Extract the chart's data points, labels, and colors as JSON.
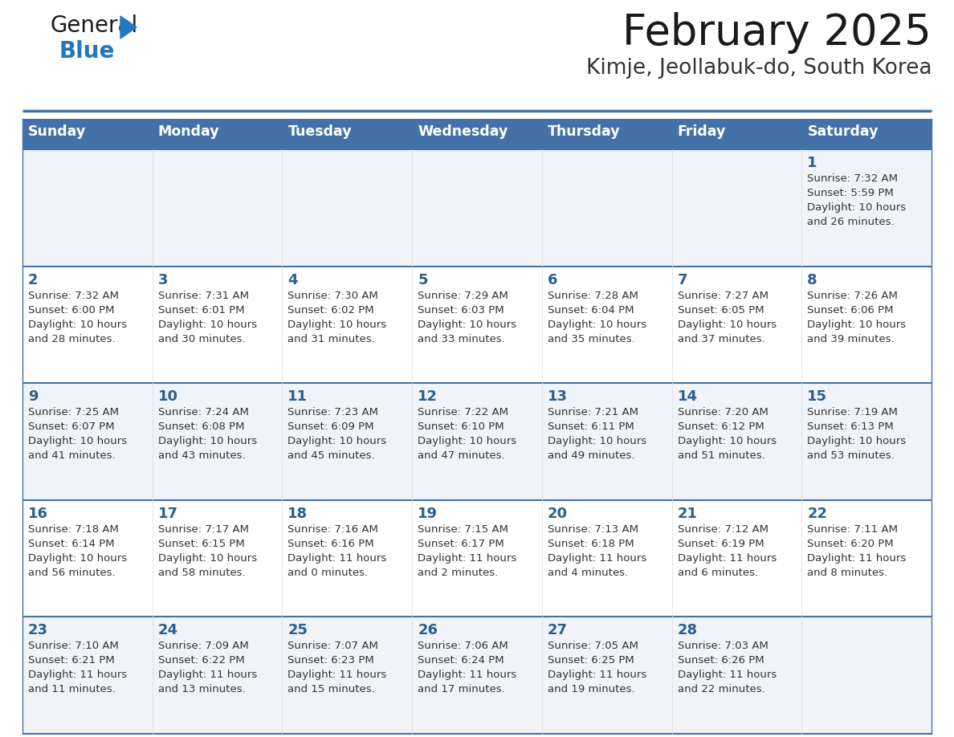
{
  "title": "February 2025",
  "subtitle": "Kimje, Jeollabuk-do, South Korea",
  "days_of_week": [
    "Sunday",
    "Monday",
    "Tuesday",
    "Wednesday",
    "Thursday",
    "Friday",
    "Saturday"
  ],
  "header_bg": "#4472A8",
  "header_text": "#FFFFFF",
  "row_bg_odd": "#F0F4F8",
  "row_bg_even": "#FFFFFF",
  "cell_border": "#4472A8",
  "day_number_color": "#2B5F8E",
  "day_info_color": "#333333",
  "title_color": "#1a1a1a",
  "subtitle_color": "#333333",
  "logo_color_general": "#1a1a1a",
  "logo_color_blue": "#2278BD",
  "logo_triangle_color": "#2278BD",
  "calendar": [
    [
      {
        "day": null,
        "info": null
      },
      {
        "day": null,
        "info": null
      },
      {
        "day": null,
        "info": null
      },
      {
        "day": null,
        "info": null
      },
      {
        "day": null,
        "info": null
      },
      {
        "day": null,
        "info": null
      },
      {
        "day": 1,
        "info": "Sunrise: 7:32 AM\nSunset: 5:59 PM\nDaylight: 10 hours\nand 26 minutes."
      }
    ],
    [
      {
        "day": 2,
        "info": "Sunrise: 7:32 AM\nSunset: 6:00 PM\nDaylight: 10 hours\nand 28 minutes."
      },
      {
        "day": 3,
        "info": "Sunrise: 7:31 AM\nSunset: 6:01 PM\nDaylight: 10 hours\nand 30 minutes."
      },
      {
        "day": 4,
        "info": "Sunrise: 7:30 AM\nSunset: 6:02 PM\nDaylight: 10 hours\nand 31 minutes."
      },
      {
        "day": 5,
        "info": "Sunrise: 7:29 AM\nSunset: 6:03 PM\nDaylight: 10 hours\nand 33 minutes."
      },
      {
        "day": 6,
        "info": "Sunrise: 7:28 AM\nSunset: 6:04 PM\nDaylight: 10 hours\nand 35 minutes."
      },
      {
        "day": 7,
        "info": "Sunrise: 7:27 AM\nSunset: 6:05 PM\nDaylight: 10 hours\nand 37 minutes."
      },
      {
        "day": 8,
        "info": "Sunrise: 7:26 AM\nSunset: 6:06 PM\nDaylight: 10 hours\nand 39 minutes."
      }
    ],
    [
      {
        "day": 9,
        "info": "Sunrise: 7:25 AM\nSunset: 6:07 PM\nDaylight: 10 hours\nand 41 minutes."
      },
      {
        "day": 10,
        "info": "Sunrise: 7:24 AM\nSunset: 6:08 PM\nDaylight: 10 hours\nand 43 minutes."
      },
      {
        "day": 11,
        "info": "Sunrise: 7:23 AM\nSunset: 6:09 PM\nDaylight: 10 hours\nand 45 minutes."
      },
      {
        "day": 12,
        "info": "Sunrise: 7:22 AM\nSunset: 6:10 PM\nDaylight: 10 hours\nand 47 minutes."
      },
      {
        "day": 13,
        "info": "Sunrise: 7:21 AM\nSunset: 6:11 PM\nDaylight: 10 hours\nand 49 minutes."
      },
      {
        "day": 14,
        "info": "Sunrise: 7:20 AM\nSunset: 6:12 PM\nDaylight: 10 hours\nand 51 minutes."
      },
      {
        "day": 15,
        "info": "Sunrise: 7:19 AM\nSunset: 6:13 PM\nDaylight: 10 hours\nand 53 minutes."
      }
    ],
    [
      {
        "day": 16,
        "info": "Sunrise: 7:18 AM\nSunset: 6:14 PM\nDaylight: 10 hours\nand 56 minutes."
      },
      {
        "day": 17,
        "info": "Sunrise: 7:17 AM\nSunset: 6:15 PM\nDaylight: 10 hours\nand 58 minutes."
      },
      {
        "day": 18,
        "info": "Sunrise: 7:16 AM\nSunset: 6:16 PM\nDaylight: 11 hours\nand 0 minutes."
      },
      {
        "day": 19,
        "info": "Sunrise: 7:15 AM\nSunset: 6:17 PM\nDaylight: 11 hours\nand 2 minutes."
      },
      {
        "day": 20,
        "info": "Sunrise: 7:13 AM\nSunset: 6:18 PM\nDaylight: 11 hours\nand 4 minutes."
      },
      {
        "day": 21,
        "info": "Sunrise: 7:12 AM\nSunset: 6:19 PM\nDaylight: 11 hours\nand 6 minutes."
      },
      {
        "day": 22,
        "info": "Sunrise: 7:11 AM\nSunset: 6:20 PM\nDaylight: 11 hours\nand 8 minutes."
      }
    ],
    [
      {
        "day": 23,
        "info": "Sunrise: 7:10 AM\nSunset: 6:21 PM\nDaylight: 11 hours\nand 11 minutes."
      },
      {
        "day": 24,
        "info": "Sunrise: 7:09 AM\nSunset: 6:22 PM\nDaylight: 11 hours\nand 13 minutes."
      },
      {
        "day": 25,
        "info": "Sunrise: 7:07 AM\nSunset: 6:23 PM\nDaylight: 11 hours\nand 15 minutes."
      },
      {
        "day": 26,
        "info": "Sunrise: 7:06 AM\nSunset: 6:24 PM\nDaylight: 11 hours\nand 17 minutes."
      },
      {
        "day": 27,
        "info": "Sunrise: 7:05 AM\nSunset: 6:25 PM\nDaylight: 11 hours\nand 19 minutes."
      },
      {
        "day": 28,
        "info": "Sunrise: 7:03 AM\nSunset: 6:26 PM\nDaylight: 11 hours\nand 22 minutes."
      },
      {
        "day": null,
        "info": null
      }
    ]
  ]
}
